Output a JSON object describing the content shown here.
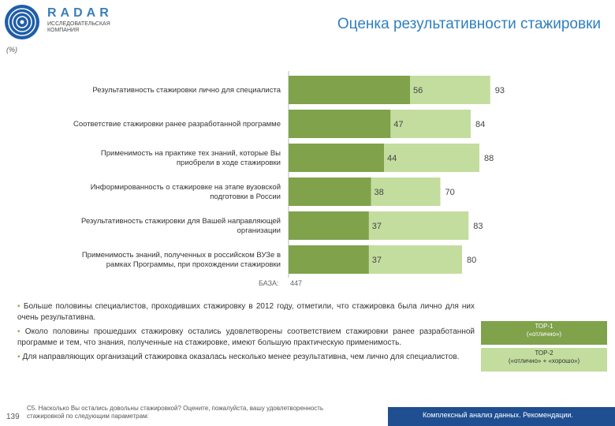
{
  "header": {
    "brand": "RADAR",
    "brand_sub": "ИССЛЕДОВАТЕЛЬСКАЯ КОМПАНИЯ",
    "title": "Оценка результативности стажировки"
  },
  "unit_label": "(%)",
  "chart_data": {
    "type": "bar",
    "orientation": "horizontal",
    "categories": [
      "Результативность стажировки лично для специалиста",
      "Соответствие стажировки ранее разработанной программе",
      "Применимость на практике тех знаний, которые Вы приобрели в ходе стажировки",
      "Информированность о стажировке на этапе вузовской подготовки в России",
      "Результативность стажировки для Вашей направляющей организации",
      "Применимость знаний, полученных в российском ВУЗе в рамках Программы, при прохождении стажировки"
    ],
    "category_lines": [
      [
        "Результативность стажировки лично для специалиста"
      ],
      [
        "Соответствие стажировки ранее разработанной программе"
      ],
      [
        "Применимость на практике тех знаний, которые Вы",
        "приобрели в ходе стажировки"
      ],
      [
        "Информированность о стажировке на этапе вузовской",
        "подготовки в России"
      ],
      [
        "Результативность стажировки для Вашей направляющей",
        "организации"
      ],
      [
        "Применимость знаний, полученных в российском ВУЗе в",
        "рамках Программы, при прохождении стажировки"
      ]
    ],
    "series": [
      {
        "name": "ТОР-1 («отлично»)",
        "values": [
          56,
          47,
          44,
          38,
          37,
          37
        ],
        "color": "#7fa24b"
      },
      {
        "name": "ТОР-2 («отлично» + «хорошо»)",
        "values": [
          93,
          84,
          88,
          70,
          83,
          80
        ],
        "color": "#c3dd9e"
      }
    ],
    "xlim": [
      0,
      100
    ]
  },
  "base": {
    "label": "БАЗА:",
    "value": "447"
  },
  "bullets": [
    "Больше половины специалистов, проходивших стажировку в 2012 году, отметили, что стажировка была лично для них очень результативна.",
    "Около половины прошедших стажировку остались удовлетворены соответствием стажировки ранее разработанной программе и тем, что знания, полученные на стажировке, имеют большую практическую применимость.",
    "Для направляющих организаций стажировка оказалась несколько менее результативна, чем лично для специалистов."
  ],
  "legend": {
    "top1": "ТОР-1",
    "top1_sub": "(«отлично»)",
    "top2": "ТОР-2",
    "top2_sub": "(«отлично» + «хорошо»)"
  },
  "footer": {
    "page": "139",
    "question": "С5. Насколько Вы остались довольны стажировкой? Оцените, пожалуйста, вашу удовлетворенность стажировкой по следующим параметрам:",
    "section": "Комплексный анализ данных. Рекомендации."
  }
}
